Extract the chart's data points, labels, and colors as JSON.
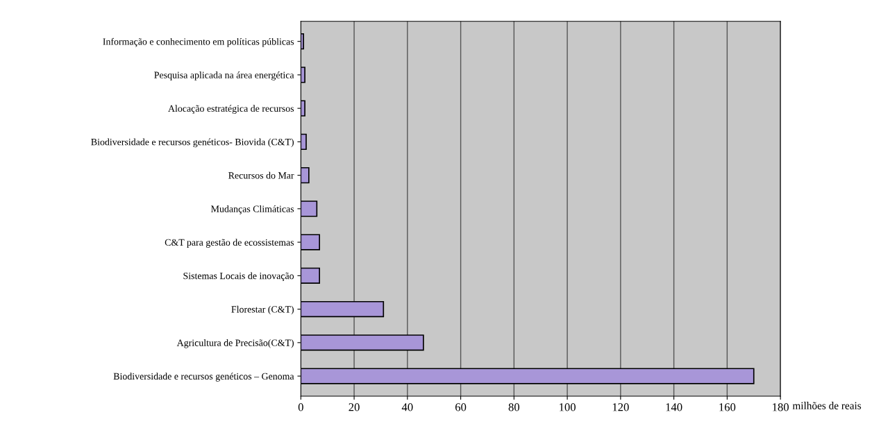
{
  "chart_data": {
    "type": "bar",
    "orientation": "horizontal",
    "xlabel": "milhões de reais",
    "categories": [
      "Informação e conhecimento em políticas públicas",
      "Pesquisa aplicada na área energética",
      "Alocação estratégica de recursos",
      "Biodiversidade e recursos genéticos- Biovida (C&T)",
      "Recursos do Mar",
      "Mudanças Climáticas",
      "C&T para gestão de ecossistemas",
      "Sistemas Locais de inovação",
      "Florestar (C&T)",
      "Agricultura de Precisão(C&T)",
      "Biodiversidade e recursos genéticos – Genoma"
    ],
    "values": [
      1,
      1.5,
      1.5,
      2,
      3,
      6,
      7,
      7,
      31,
      46,
      170
    ],
    "color": "#a896d8",
    "xlim": [
      0,
      180
    ],
    "xticks": [
      0,
      20,
      40,
      60,
      80,
      100,
      120,
      140,
      160,
      180
    ],
    "grid": "x"
  }
}
